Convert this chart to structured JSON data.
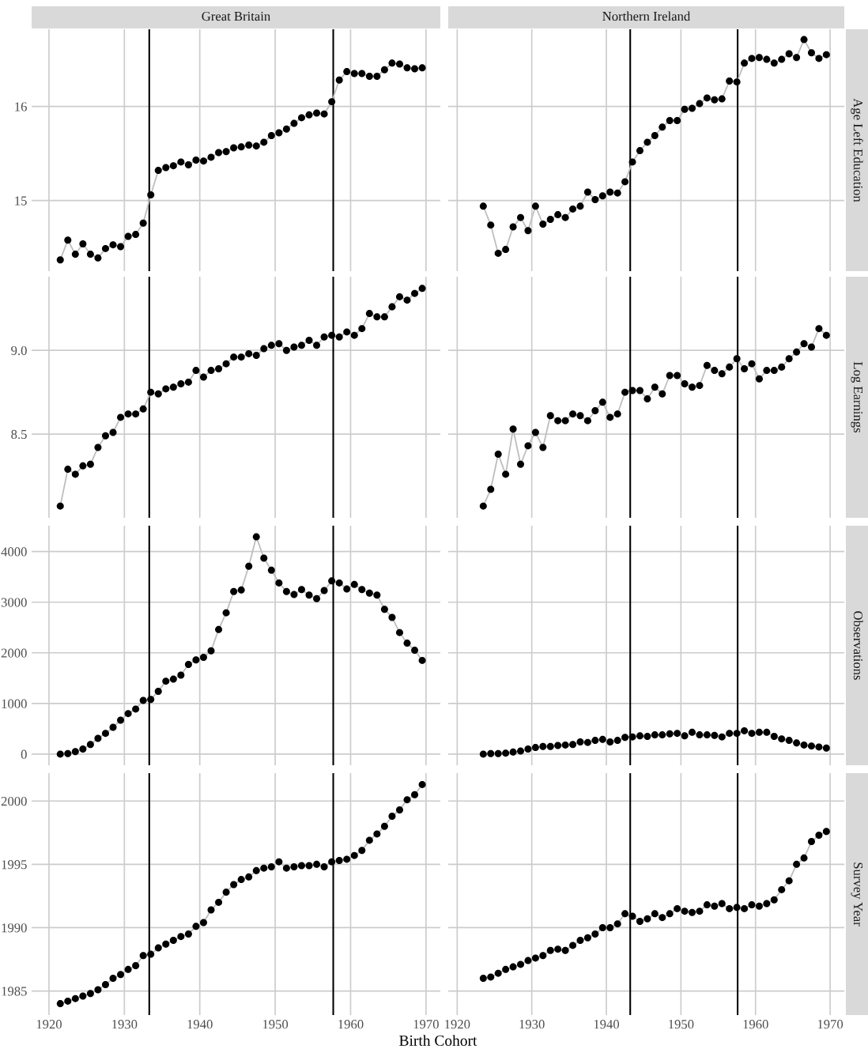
{
  "chart_data": [
    {
      "type": "line",
      "title": "Great Britain",
      "tick_labels": "y",
      "grid": true,
      "xlim": [
        1917.7,
        1971.9
      ],
      "xticks": [
        1920,
        1930,
        1940,
        1950,
        1960,
        1970
      ],
      "ylim": [
        14.25,
        16.82
      ],
      "yticks": [
        15,
        16
      ],
      "ref_lines": [
        {
          "axis": "x",
          "value": 1933.3,
          "color": "#000000"
        },
        {
          "axis": "x",
          "value": 1957.7,
          "color": "#000000"
        }
      ],
      "x": [
        1921.5,
        1922.5,
        1923.5,
        1924.5,
        1925.5,
        1926.5,
        1927.5,
        1928.5,
        1929.5,
        1930.5,
        1931.5,
        1932.5,
        1933.5,
        1934.5,
        1935.5,
        1936.5,
        1937.5,
        1938.5,
        1939.5,
        1940.5,
        1941.5,
        1942.5,
        1943.5,
        1944.5,
        1945.5,
        1946.5,
        1947.5,
        1948.5,
        1949.5,
        1950.5,
        1951.5,
        1952.5,
        1953.5,
        1954.5,
        1955.5,
        1956.5,
        1957.5,
        1958.5,
        1959.5,
        1960.5,
        1961.5,
        1962.5,
        1963.5,
        1964.5,
        1965.5,
        1966.5,
        1967.5,
        1968.5,
        1969.5
      ],
      "series": [
        {
          "type": "line",
          "color": "#bebebe",
          "marker": "none",
          "values": [
            14.37,
            14.58,
            14.43,
            14.54,
            14.43,
            14.39,
            14.49,
            14.53,
            14.51,
            14.62,
            14.64,
            14.76,
            15.06,
            15.32,
            15.35,
            15.37,
            15.41,
            15.38,
            15.43,
            15.42,
            15.46,
            15.51,
            15.52,
            15.56,
            15.57,
            15.59,
            15.58,
            15.62,
            15.69,
            15.72,
            15.76,
            15.82,
            15.88,
            15.91,
            15.93,
            15.92,
            16.05,
            16.28,
            16.37,
            16.35,
            16.35,
            16.32,
            16.32,
            16.39,
            16.46,
            16.45,
            16.41,
            16.4,
            16.41
          ]
        },
        {
          "type": "scatter",
          "color": "#000000",
          "marker": "circle",
          "values": [
            14.37,
            14.58,
            14.43,
            14.54,
            14.43,
            14.39,
            14.49,
            14.53,
            14.51,
            14.62,
            14.64,
            14.76,
            15.06,
            15.32,
            15.35,
            15.37,
            15.41,
            15.38,
            15.43,
            15.42,
            15.46,
            15.51,
            15.52,
            15.56,
            15.57,
            15.59,
            15.58,
            15.62,
            15.69,
            15.72,
            15.76,
            15.82,
            15.88,
            15.91,
            15.93,
            15.92,
            16.05,
            16.28,
            16.37,
            16.35,
            16.35,
            16.32,
            16.32,
            16.39,
            16.46,
            16.45,
            16.41,
            16.4,
            16.41
          ]
        }
      ]
    },
    {
      "type": "line",
      "title": "Northern Ireland",
      "ylabel": "Age Left Education",
      "tick_labels": false,
      "grid": true,
      "xlim": [
        1918.8,
        1971.9
      ],
      "xticks": [
        1920,
        1930,
        1940,
        1950,
        1960,
        1970
      ],
      "ylim": [
        14.25,
        16.82
      ],
      "yticks": [
        15,
        16
      ],
      "ref_lines": [
        {
          "axis": "x",
          "value": 1943.2,
          "color": "#000000"
        },
        {
          "axis": "x",
          "value": 1957.6,
          "color": "#000000"
        }
      ],
      "x": [
        1923.5,
        1924.5,
        1925.5,
        1926.5,
        1927.5,
        1928.5,
        1929.5,
        1930.5,
        1931.5,
        1932.5,
        1933.5,
        1934.5,
        1935.5,
        1936.5,
        1937.5,
        1938.5,
        1939.5,
        1940.5,
        1941.5,
        1942.5,
        1943.5,
        1944.5,
        1945.5,
        1946.5,
        1947.5,
        1948.5,
        1949.5,
        1950.5,
        1951.5,
        1952.5,
        1953.5,
        1954.5,
        1955.5,
        1956.5,
        1957.5,
        1958.5,
        1959.5,
        1960.5,
        1961.5,
        1962.5,
        1963.5,
        1964.5,
        1965.5,
        1966.5,
        1967.5,
        1968.5,
        1969.5
      ],
      "series": [
        {
          "type": "line",
          "color": "#bebebe",
          "marker": "none",
          "values": [
            14.94,
            14.74,
            14.44,
            14.48,
            14.72,
            14.82,
            14.68,
            14.94,
            14.75,
            14.8,
            14.85,
            14.82,
            14.91,
            14.94,
            15.09,
            15.01,
            15.05,
            15.09,
            15.08,
            15.2,
            15.41,
            15.53,
            15.62,
            15.69,
            15.78,
            15.85,
            15.85,
            15.97,
            15.98,
            16.03,
            16.09,
            16.07,
            16.08,
            16.27,
            16.26,
            16.46,
            16.51,
            16.52,
            16.5,
            16.46,
            16.5,
            16.56,
            16.52,
            16.71,
            16.57,
            16.51,
            16.55
          ]
        },
        {
          "type": "scatter",
          "color": "#000000",
          "marker": "circle",
          "values": [
            14.94,
            14.74,
            14.44,
            14.48,
            14.72,
            14.82,
            14.68,
            14.94,
            14.75,
            14.8,
            14.85,
            14.82,
            14.91,
            14.94,
            15.09,
            15.01,
            15.05,
            15.09,
            15.08,
            15.2,
            15.41,
            15.53,
            15.62,
            15.69,
            15.78,
            15.85,
            15.85,
            15.97,
            15.98,
            16.03,
            16.09,
            16.07,
            16.08,
            16.27,
            16.26,
            16.46,
            16.51,
            16.52,
            16.5,
            16.46,
            16.5,
            16.56,
            16.52,
            16.71,
            16.57,
            16.51,
            16.55
          ]
        }
      ]
    },
    {
      "type": "line",
      "tick_labels": "y",
      "grid": true,
      "xlim": [
        1917.7,
        1971.9
      ],
      "xticks": [
        1920,
        1930,
        1940,
        1950,
        1960,
        1970
      ],
      "ylim": [
        8.0,
        9.44
      ],
      "yticks": [
        8.5,
        {
          "value": 9,
          "label": "9.0"
        }
      ],
      "ref_lines": [
        {
          "axis": "x",
          "value": 1933.3,
          "color": "#000000"
        },
        {
          "axis": "x",
          "value": 1957.7,
          "color": "#000000"
        }
      ],
      "x": [
        1921.5,
        1922.5,
        1923.5,
        1924.5,
        1925.5,
        1926.5,
        1927.5,
        1928.5,
        1929.5,
        1930.5,
        1931.5,
        1932.5,
        1933.5,
        1934.5,
        1935.5,
        1936.5,
        1937.5,
        1938.5,
        1939.5,
        1940.5,
        1941.5,
        1942.5,
        1943.5,
        1944.5,
        1945.5,
        1946.5,
        1947.5,
        1948.5,
        1949.5,
        1950.5,
        1951.5,
        1952.5,
        1953.5,
        1954.5,
        1955.5,
        1956.5,
        1957.5,
        1958.5,
        1959.5,
        1960.5,
        1961.5,
        1962.5,
        1963.5,
        1964.5,
        1965.5,
        1966.5,
        1967.5,
        1968.5,
        1969.5
      ],
      "series": [
        {
          "type": "line",
          "color": "#bebebe",
          "marker": "none",
          "values": [
            8.07,
            8.29,
            8.26,
            8.31,
            8.32,
            8.42,
            8.49,
            8.51,
            8.6,
            8.62,
            8.62,
            8.65,
            8.75,
            8.74,
            8.77,
            8.78,
            8.8,
            8.81,
            8.88,
            8.84,
            8.88,
            8.89,
            8.92,
            8.96,
            8.96,
            8.98,
            8.97,
            9.01,
            9.03,
            9.04,
            9.0,
            9.02,
            9.03,
            9.06,
            9.03,
            9.08,
            9.09,
            9.08,
            9.11,
            9.09,
            9.13,
            9.22,
            9.2,
            9.2,
            9.26,
            9.32,
            9.3,
            9.34,
            9.37
          ]
        },
        {
          "type": "scatter",
          "color": "#000000",
          "marker": "circle",
          "values": [
            8.07,
            8.29,
            8.26,
            8.31,
            8.32,
            8.42,
            8.49,
            8.51,
            8.6,
            8.62,
            8.62,
            8.65,
            8.75,
            8.74,
            8.77,
            8.78,
            8.8,
            8.81,
            8.88,
            8.84,
            8.88,
            8.89,
            8.92,
            8.96,
            8.96,
            8.98,
            8.97,
            9.01,
            9.03,
            9.04,
            9.0,
            9.02,
            9.03,
            9.06,
            9.03,
            9.08,
            9.09,
            9.08,
            9.11,
            9.09,
            9.13,
            9.22,
            9.2,
            9.2,
            9.26,
            9.32,
            9.3,
            9.34,
            9.37
          ]
        }
      ]
    },
    {
      "type": "line",
      "ylabel": "Log Earnings",
      "tick_labels": false,
      "grid": true,
      "xlim": [
        1918.8,
        1971.9
      ],
      "xticks": [
        1920,
        1930,
        1940,
        1950,
        1960,
        1970
      ],
      "ylim": [
        8.0,
        9.44
      ],
      "yticks": [
        8.5,
        9.0
      ],
      "ref_lines": [
        {
          "axis": "x",
          "value": 1943.2,
          "color": "#000000"
        },
        {
          "axis": "x",
          "value": 1957.6,
          "color": "#000000"
        }
      ],
      "x": [
        1923.5,
        1924.5,
        1925.5,
        1926.5,
        1927.5,
        1928.5,
        1929.5,
        1930.5,
        1931.5,
        1932.5,
        1933.5,
        1934.5,
        1935.5,
        1936.5,
        1937.5,
        1938.5,
        1939.5,
        1940.5,
        1941.5,
        1942.5,
        1943.5,
        1944.5,
        1945.5,
        1946.5,
        1947.5,
        1948.5,
        1949.5,
        1950.5,
        1951.5,
        1952.5,
        1953.5,
        1954.5,
        1955.5,
        1956.5,
        1957.5,
        1958.5,
        1959.5,
        1960.5,
        1961.5,
        1962.5,
        1963.5,
        1964.5,
        1965.5,
        1966.5,
        1967.5,
        1968.5,
        1969.5
      ],
      "series": [
        {
          "type": "line",
          "color": "#bebebe",
          "marker": "none",
          "values": [
            8.07,
            8.17,
            8.38,
            8.26,
            8.53,
            8.32,
            8.43,
            8.51,
            8.42,
            8.61,
            8.58,
            8.58,
            8.62,
            8.61,
            8.58,
            8.64,
            8.69,
            8.6,
            8.62,
            8.75,
            8.76,
            8.76,
            8.71,
            8.78,
            8.74,
            8.85,
            8.85,
            8.8,
            8.78,
            8.79,
            8.91,
            8.88,
            8.86,
            8.9,
            8.95,
            8.89,
            8.92,
            8.83,
            8.88,
            8.88,
            8.9,
            8.95,
            8.99,
            9.04,
            9.02,
            9.13,
            9.09
          ]
        },
        {
          "type": "scatter",
          "color": "#000000",
          "marker": "circle",
          "values": [
            8.07,
            8.17,
            8.38,
            8.26,
            8.53,
            8.32,
            8.43,
            8.51,
            8.42,
            8.61,
            8.58,
            8.58,
            8.62,
            8.61,
            8.58,
            8.64,
            8.69,
            8.6,
            8.62,
            8.75,
            8.76,
            8.76,
            8.71,
            8.78,
            8.74,
            8.85,
            8.85,
            8.8,
            8.78,
            8.79,
            8.91,
            8.88,
            8.86,
            8.9,
            8.95,
            8.89,
            8.92,
            8.83,
            8.88,
            8.88,
            8.9,
            8.95,
            8.99,
            9.04,
            9.02,
            9.13,
            9.09
          ]
        }
      ]
    },
    {
      "type": "line",
      "tick_labels": "y",
      "grid": true,
      "xlim": [
        1917.7,
        1971.9
      ],
      "xticks": [
        1920,
        1930,
        1940,
        1950,
        1960,
        1970
      ],
      "ylim": [
        -220,
        4510
      ],
      "yticks": [
        0,
        1000,
        2000,
        3000,
        4000
      ],
      "ref_lines": [
        {
          "axis": "x",
          "value": 1933.3,
          "color": "#000000"
        },
        {
          "axis": "x",
          "value": 1957.7,
          "color": "#000000"
        }
      ],
      "x": [
        1921.5,
        1922.5,
        1923.5,
        1924.5,
        1925.5,
        1926.5,
        1927.5,
        1928.5,
        1929.5,
        1930.5,
        1931.5,
        1932.5,
        1933.5,
        1934.5,
        1935.5,
        1936.5,
        1937.5,
        1938.5,
        1939.5,
        1940.5,
        1941.5,
        1942.5,
        1943.5,
        1944.5,
        1945.5,
        1946.5,
        1947.5,
        1948.5,
        1949.5,
        1950.5,
        1951.5,
        1952.5,
        1953.5,
        1954.5,
        1955.5,
        1956.5,
        1957.5,
        1958.5,
        1959.5,
        1960.5,
        1961.5,
        1962.5,
        1963.5,
        1964.5,
        1965.5,
        1966.5,
        1967.5,
        1968.5,
        1969.5
      ],
      "series": [
        {
          "type": "line",
          "color": "#bebebe",
          "marker": "none",
          "values": [
            0,
            10,
            50,
            100,
            190,
            310,
            410,
            530,
            670,
            800,
            890,
            1060,
            1080,
            1240,
            1440,
            1480,
            1560,
            1770,
            1860,
            1910,
            2040,
            2460,
            2790,
            3210,
            3240,
            3710,
            4290,
            3870,
            3630,
            3380,
            3210,
            3150,
            3250,
            3140,
            3070,
            3230,
            3420,
            3380,
            3260,
            3350,
            3250,
            3180,
            3140,
            2860,
            2700,
            2400,
            2190,
            2050,
            1850
          ]
        },
        {
          "type": "scatter",
          "color": "#000000",
          "marker": "circle",
          "values": [
            0,
            10,
            50,
            100,
            190,
            310,
            410,
            530,
            670,
            800,
            890,
            1060,
            1080,
            1240,
            1440,
            1480,
            1560,
            1770,
            1860,
            1910,
            2040,
            2460,
            2790,
            3210,
            3240,
            3710,
            4290,
            3870,
            3630,
            3380,
            3210,
            3150,
            3250,
            3140,
            3070,
            3230,
            3420,
            3380,
            3260,
            3350,
            3250,
            3180,
            3140,
            2860,
            2700,
            2400,
            2190,
            2050,
            1850
          ]
        }
      ]
    },
    {
      "type": "line",
      "ylabel": "Observations",
      "tick_labels": false,
      "grid": true,
      "xlim": [
        1918.8,
        1971.9
      ],
      "xticks": [
        1920,
        1930,
        1940,
        1950,
        1960,
        1970
      ],
      "ylim": [
        -220,
        4510
      ],
      "yticks": [
        0,
        1000,
        2000,
        3000,
        4000
      ],
      "ref_lines": [
        {
          "axis": "x",
          "value": 1943.2,
          "color": "#000000"
        },
        {
          "axis": "x",
          "value": 1957.6,
          "color": "#000000"
        }
      ],
      "x": [
        1923.5,
        1924.5,
        1925.5,
        1926.5,
        1927.5,
        1928.5,
        1929.5,
        1930.5,
        1931.5,
        1932.5,
        1933.5,
        1934.5,
        1935.5,
        1936.5,
        1937.5,
        1938.5,
        1939.5,
        1940.5,
        1941.5,
        1942.5,
        1943.5,
        1944.5,
        1945.5,
        1946.5,
        1947.5,
        1948.5,
        1949.5,
        1950.5,
        1951.5,
        1952.5,
        1953.5,
        1954.5,
        1955.5,
        1956.5,
        1957.5,
        1958.5,
        1959.5,
        1960.5,
        1961.5,
        1962.5,
        1963.5,
        1964.5,
        1965.5,
        1966.5,
        1967.5,
        1968.5,
        1969.5
      ],
      "series": [
        {
          "type": "line",
          "color": "#bebebe",
          "marker": "none",
          "values": [
            0,
            10,
            10,
            20,
            40,
            60,
            100,
            130,
            150,
            150,
            170,
            180,
            190,
            240,
            230,
            270,
            290,
            240,
            270,
            330,
            340,
            360,
            350,
            380,
            380,
            400,
            410,
            360,
            430,
            380,
            380,
            370,
            340,
            410,
            410,
            460,
            410,
            430,
            430,
            350,
            300,
            270,
            220,
            180,
            160,
            140,
            120
          ]
        },
        {
          "type": "scatter",
          "color": "#000000",
          "marker": "circle",
          "values": [
            0,
            10,
            10,
            20,
            40,
            60,
            100,
            130,
            150,
            150,
            170,
            180,
            190,
            240,
            230,
            270,
            290,
            240,
            270,
            330,
            340,
            360,
            350,
            380,
            380,
            400,
            410,
            360,
            430,
            380,
            380,
            370,
            340,
            410,
            410,
            460,
            410,
            430,
            430,
            350,
            300,
            270,
            220,
            180,
            160,
            140,
            120
          ]
        }
      ]
    },
    {
      "type": "line",
      "xlabel": "Birth Cohort",
      "grid": true,
      "xlim": [
        1917.7,
        1971.9
      ],
      "xticks": [
        1920,
        1930,
        1940,
        1950,
        1960,
        1970
      ],
      "ylim": [
        1983.1,
        2002.2
      ],
      "yticks": [
        1985,
        1990,
        1995,
        2000
      ],
      "ref_lines": [
        {
          "axis": "x",
          "value": 1933.3,
          "color": "#000000"
        },
        {
          "axis": "x",
          "value": 1957.7,
          "color": "#000000"
        }
      ],
      "x": [
        1921.5,
        1922.5,
        1923.5,
        1924.5,
        1925.5,
        1926.5,
        1927.5,
        1928.5,
        1929.5,
        1930.5,
        1931.5,
        1932.5,
        1933.5,
        1934.5,
        1935.5,
        1936.5,
        1937.5,
        1938.5,
        1939.5,
        1940.5,
        1941.5,
        1942.5,
        1943.5,
        1944.5,
        1945.5,
        1946.5,
        1947.5,
        1948.5,
        1949.5,
        1950.5,
        1951.5,
        1952.5,
        1953.5,
        1954.5,
        1955.5,
        1956.5,
        1957.5,
        1958.5,
        1959.5,
        1960.5,
        1961.5,
        1962.5,
        1963.5,
        1964.5,
        1965.5,
        1966.5,
        1967.5,
        1968.5,
        1969.5
      ],
      "series": [
        {
          "type": "line",
          "color": "#bebebe",
          "marker": "none",
          "values": [
            1984.0,
            1984.2,
            1984.4,
            1984.6,
            1984.8,
            1985.1,
            1985.5,
            1986.0,
            1986.3,
            1986.7,
            1987.0,
            1987.8,
            1987.9,
            1988.4,
            1988.7,
            1989.0,
            1989.3,
            1989.5,
            1990.1,
            1990.4,
            1991.4,
            1992.0,
            1992.8,
            1993.4,
            1993.8,
            1994.0,
            1994.5,
            1994.7,
            1994.8,
            1995.2,
            1994.7,
            1994.8,
            1994.9,
            1994.9,
            1995.0,
            1994.8,
            1995.2,
            1995.3,
            1995.4,
            1995.7,
            1996.1,
            1996.9,
            1997.4,
            1998.0,
            1998.8,
            1999.3,
            2000.1,
            2000.5,
            2001.3
          ]
        },
        {
          "type": "scatter",
          "color": "#000000",
          "marker": "circle",
          "values": [
            1984.0,
            1984.2,
            1984.4,
            1984.6,
            1984.8,
            1985.1,
            1985.5,
            1986.0,
            1986.3,
            1986.7,
            1987.0,
            1987.8,
            1987.9,
            1988.4,
            1988.7,
            1989.0,
            1989.3,
            1989.5,
            1990.1,
            1990.4,
            1991.4,
            1992.0,
            1992.8,
            1993.4,
            1993.8,
            1994.0,
            1994.5,
            1994.7,
            1994.8,
            1995.2,
            1994.7,
            1994.8,
            1994.9,
            1994.9,
            1995.0,
            1994.8,
            1995.2,
            1995.3,
            1995.4,
            1995.7,
            1996.1,
            1996.9,
            1997.4,
            1998.0,
            1998.8,
            1999.3,
            2000.1,
            2000.5,
            2001.3
          ]
        }
      ]
    },
    {
      "type": "line",
      "ylabel": "Survey Year",
      "tick_labels": "x",
      "grid": true,
      "xlim": [
        1918.8,
        1971.9
      ],
      "xticks": [
        1920,
        1930,
        1940,
        1950,
        1960,
        1970
      ],
      "ylim": [
        1983.1,
        2002.2
      ],
      "yticks": [
        1985,
        1990,
        1995,
        2000
      ],
      "ref_lines": [
        {
          "axis": "x",
          "value": 1943.2,
          "color": "#000000"
        },
        {
          "axis": "x",
          "value": 1957.6,
          "color": "#000000"
        }
      ],
      "x": [
        1923.5,
        1924.5,
        1925.5,
        1926.5,
        1927.5,
        1928.5,
        1929.5,
        1930.5,
        1931.5,
        1932.5,
        1933.5,
        1934.5,
        1935.5,
        1936.5,
        1937.5,
        1938.5,
        1939.5,
        1940.5,
        1941.5,
        1942.5,
        1943.5,
        1944.5,
        1945.5,
        1946.5,
        1947.5,
        1948.5,
        1949.5,
        1950.5,
        1951.5,
        1952.5,
        1953.5,
        1954.5,
        1955.5,
        1956.5,
        1957.5,
        1958.5,
        1959.5,
        1960.5,
        1961.5,
        1962.5,
        1963.5,
        1964.5,
        1965.5,
        1966.5,
        1967.5,
        1968.5,
        1969.5
      ],
      "series": [
        {
          "type": "line",
          "color": "#bebebe",
          "marker": "none",
          "values": [
            1986.0,
            1986.1,
            1986.4,
            1986.7,
            1986.9,
            1987.1,
            1987.4,
            1987.6,
            1987.8,
            1988.2,
            1988.3,
            1988.2,
            1988.6,
            1989.0,
            1989.2,
            1989.5,
            1990.0,
            1990.0,
            1990.3,
            1991.1,
            1990.9,
            1990.5,
            1990.7,
            1991.1,
            1990.8,
            1991.1,
            1991.5,
            1991.3,
            1991.2,
            1991.3,
            1991.8,
            1991.7,
            1991.9,
            1991.5,
            1991.6,
            1991.5,
            1991.8,
            1991.7,
            1991.9,
            1992.2,
            1993.0,
            1993.7,
            1995.0,
            1995.5,
            1996.8,
            1997.3,
            1997.6
          ]
        },
        {
          "type": "scatter",
          "color": "#000000",
          "marker": "circle",
          "values": [
            1986.0,
            1986.1,
            1986.4,
            1986.7,
            1986.9,
            1987.1,
            1987.4,
            1987.6,
            1987.8,
            1988.2,
            1988.3,
            1988.2,
            1988.6,
            1989.0,
            1989.2,
            1989.5,
            1990.0,
            1990.0,
            1990.3,
            1991.1,
            1990.9,
            1990.5,
            1990.7,
            1991.1,
            1990.8,
            1991.1,
            1991.5,
            1991.3,
            1991.2,
            1991.3,
            1991.8,
            1991.7,
            1991.9,
            1991.5,
            1991.6,
            1991.5,
            1991.8,
            1991.7,
            1991.9,
            1992.2,
            1993.0,
            1993.7,
            1995.0,
            1995.5,
            1996.8,
            1997.3,
            1997.6
          ]
        }
      ]
    }
  ]
}
